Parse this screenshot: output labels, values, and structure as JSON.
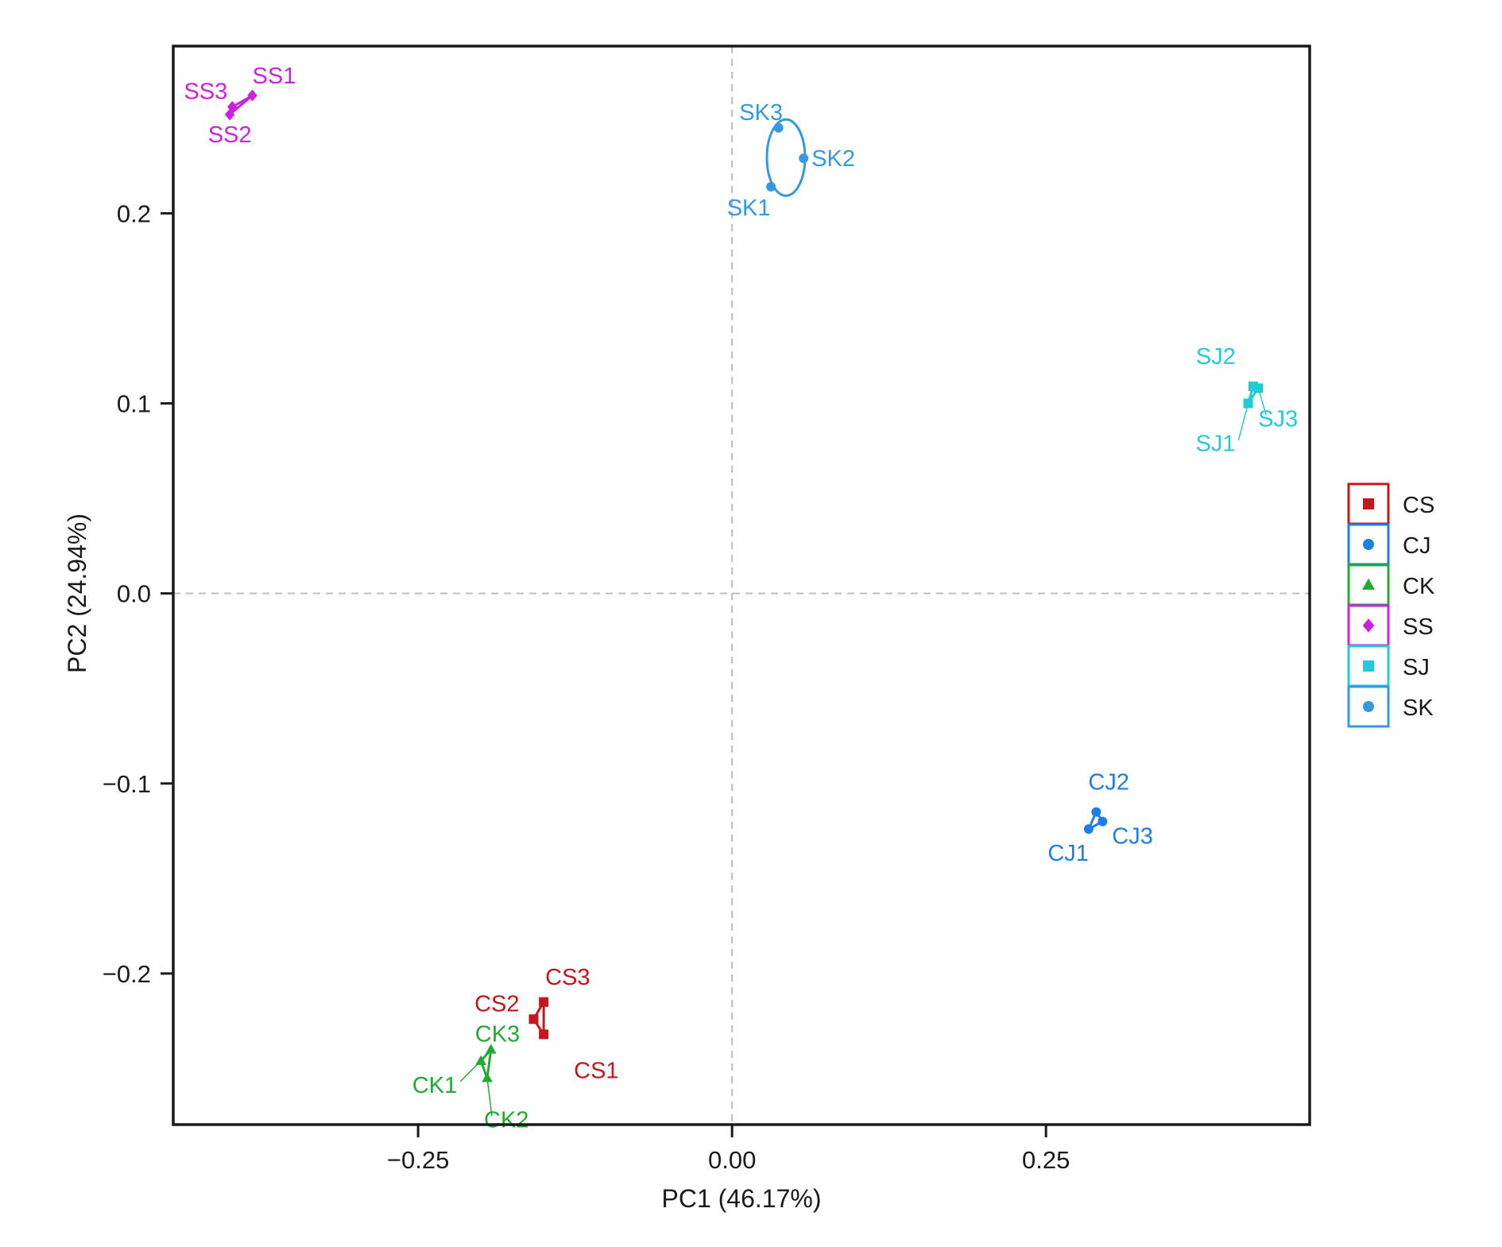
{
  "chart_data": {
    "type": "scatter",
    "title": "",
    "xlabel": "PC1 (46.17%)",
    "ylabel": "PC2 (24.94%)",
    "xlim": [
      -0.445,
      0.46
    ],
    "ylim": [
      -0.2795,
      0.288
    ],
    "xticks": [
      -0.25,
      0.0,
      0.25
    ],
    "xtick_labels": [
      "−0.25",
      "0.00",
      "0.25"
    ],
    "yticks": [
      -0.2,
      -0.1,
      0.0,
      0.1,
      0.2
    ],
    "ytick_labels": [
      "−0.2",
      "−0.1",
      "0.0",
      "0.1",
      "0.2"
    ],
    "reference_lines": {
      "x": 0,
      "y": 0,
      "style": "dashed"
    },
    "grid": false,
    "legend_position": "right",
    "series": [
      {
        "name": "CS",
        "color": "#c4161c",
        "marker": "square",
        "points": [
          {
            "label": "CS1",
            "x": -0.15,
            "y": -0.232
          },
          {
            "label": "CS2",
            "x": -0.158,
            "y": -0.224
          },
          {
            "label": "CS3",
            "x": -0.15,
            "y": -0.215
          }
        ]
      },
      {
        "name": "CJ",
        "color": "#1c7ee6",
        "marker": "circle",
        "points": [
          {
            "label": "CJ1",
            "x": 0.284,
            "y": -0.124
          },
          {
            "label": "CJ2",
            "x": 0.29,
            "y": -0.115
          },
          {
            "label": "CJ3",
            "x": 0.295,
            "y": -0.12
          }
        ]
      },
      {
        "name": "CK",
        "color": "#22aa33",
        "marker": "triangle",
        "points": [
          {
            "label": "CK1",
            "x": -0.2,
            "y": -0.246
          },
          {
            "label": "CK2",
            "x": -0.195,
            "y": -0.255
          },
          {
            "label": "CK3",
            "x": -0.192,
            "y": -0.24
          }
        ]
      },
      {
        "name": "SS",
        "color": "#cc22dd",
        "marker": "diamond",
        "points": [
          {
            "label": "SS1",
            "x": -0.382,
            "y": 0.262
          },
          {
            "label": "SS2",
            "x": -0.4,
            "y": 0.252
          },
          {
            "label": "SS3",
            "x": -0.398,
            "y": 0.256
          }
        ]
      },
      {
        "name": "SJ",
        "color": "#22cbd8",
        "marker": "square",
        "points": [
          {
            "label": "SJ1",
            "x": 0.411,
            "y": 0.1
          },
          {
            "label": "SJ2",
            "x": 0.415,
            "y": 0.109
          },
          {
            "label": "SJ3",
            "x": 0.419,
            "y": 0.108
          }
        ]
      },
      {
        "name": "SK",
        "color": "#3399e0",
        "marker": "circle",
        "points": [
          {
            "label": "SK1",
            "x": 0.031,
            "y": 0.214
          },
          {
            "label": "SK2",
            "x": 0.057,
            "y": 0.229
          },
          {
            "label": "SK3",
            "x": 0.037,
            "y": 0.245
          }
        ]
      }
    ]
  }
}
